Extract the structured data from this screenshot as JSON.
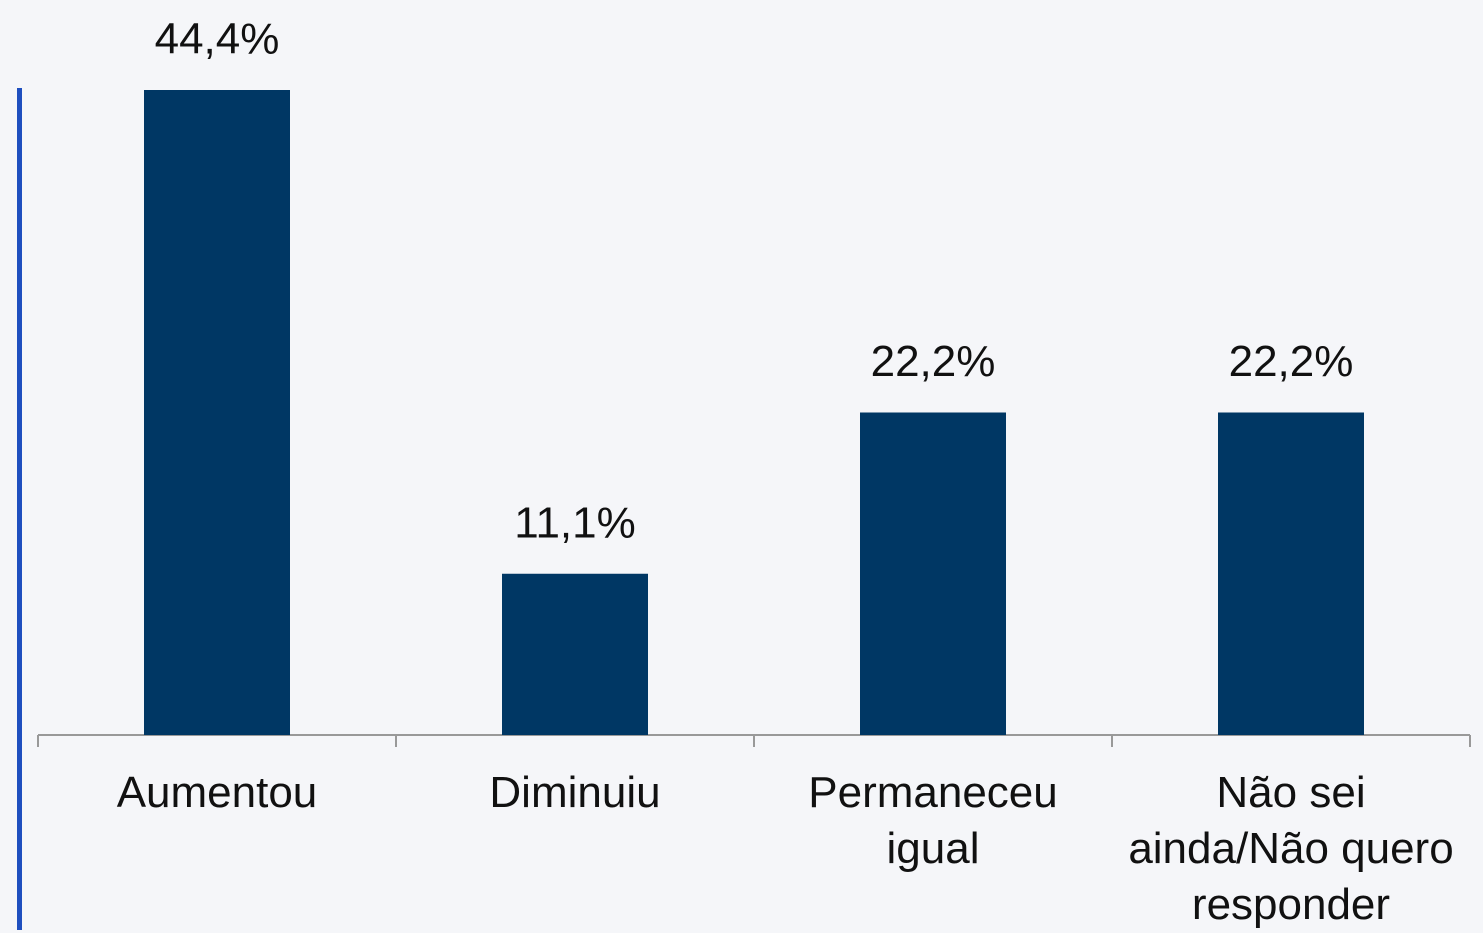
{
  "chart_data": {
    "type": "bar",
    "categories": [
      "Aumentou",
      "Diminuiu",
      "Permaneceu igual",
      "Não sei ainda/Não quero responder"
    ],
    "values": [
      44.4,
      11.1,
      22.2,
      22.2
    ],
    "value_labels": [
      "44,4%",
      "11,1%",
      "22,2%",
      "22,2%"
    ],
    "color": "#003764"
  }
}
